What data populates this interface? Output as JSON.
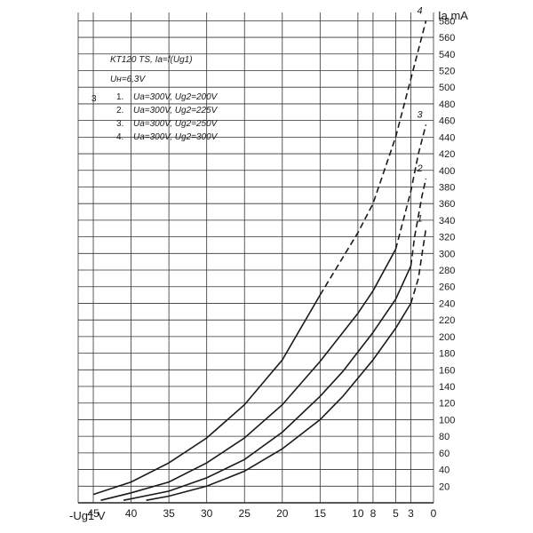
{
  "chart_data": {
    "type": "line",
    "title": "KT120 TS, Ia=f(Ug1)",
    "subtitle": "Uн=6,3V",
    "xlabel": "-Ug1 V",
    "ylabel": "Ia mA",
    "xlim": [
      47,
      0
    ],
    "ylim": [
      0,
      590
    ],
    "x_reversed": true,
    "grid": true,
    "x_ticks": [
      {
        "value": 45,
        "label": "45"
      },
      {
        "value": 40,
        "label": "40"
      },
      {
        "value": 35,
        "label": "35"
      },
      {
        "value": 30,
        "label": "30"
      },
      {
        "value": 25,
        "label": "25"
      },
      {
        "value": 20,
        "label": "20"
      },
      {
        "value": 15,
        "label": "15"
      },
      {
        "value": 10,
        "label": "10"
      },
      {
        "value": 8,
        "label": "8"
      },
      {
        "value": 5,
        "label": "5"
      },
      {
        "value": 3,
        "label": "3"
      },
      {
        "value": 0,
        "label": "0"
      }
    ],
    "y_ticks": [
      20,
      40,
      60,
      80,
      100,
      120,
      140,
      160,
      180,
      200,
      220,
      240,
      260,
      280,
      300,
      320,
      340,
      360,
      380,
      400,
      420,
      440,
      460,
      480,
      500,
      520,
      540,
      560,
      580
    ],
    "legend_marker": "3",
    "legend": [
      {
        "id": "1.",
        "text": "Ua=300V, Ug2=200V"
      },
      {
        "id": "2.",
        "text": "Ua=300V, Ug2=225V"
      },
      {
        "id": "3.",
        "text": "Ua=300V, Ug2=250V"
      },
      {
        "id": "4.",
        "text": "Ua=300V, Ug2=300V"
      }
    ],
    "series": [
      {
        "name": "1",
        "color": "#1a1a1a",
        "solid": [
          [
            38.0,
            3
          ],
          [
            35.0,
            8
          ],
          [
            30.0,
            20
          ],
          [
            25.0,
            38
          ],
          [
            20.0,
            65
          ],
          [
            15.0,
            100
          ],
          [
            12.0,
            128
          ],
          [
            8.0,
            172
          ],
          [
            5.0,
            210
          ],
          [
            3.0,
            240
          ]
        ],
        "dashed": [
          [
            3.0,
            240
          ],
          [
            2.0,
            270
          ],
          [
            1.5,
            300
          ],
          [
            1.0,
            330
          ]
        ]
      },
      {
        "name": "2",
        "color": "#1a1a1a",
        "solid": [
          [
            41.0,
            3
          ],
          [
            35.0,
            14
          ],
          [
            30.0,
            30
          ],
          [
            25.0,
            52
          ],
          [
            20.0,
            85
          ],
          [
            15.0,
            128
          ],
          [
            12.0,
            158
          ],
          [
            8.0,
            205
          ],
          [
            5.0,
            245
          ],
          [
            3.0,
            285
          ]
        ],
        "dashed": [
          [
            3.0,
            285
          ],
          [
            2.5,
            320
          ],
          [
            1.5,
            370
          ],
          [
            1.0,
            390
          ]
        ]
      },
      {
        "name": "3",
        "color": "#1a1a1a",
        "solid": [
          [
            44.0,
            3
          ],
          [
            40.0,
            12
          ],
          [
            35.0,
            25
          ],
          [
            30.0,
            48
          ],
          [
            25.0,
            78
          ],
          [
            20.0,
            118
          ],
          [
            15.0,
            170
          ],
          [
            10.0,
            228
          ],
          [
            8.0,
            255
          ],
          [
            5.0,
            305
          ]
        ],
        "dashed": [
          [
            5.0,
            305
          ],
          [
            4.0,
            340
          ],
          [
            3.0,
            375
          ],
          [
            2.0,
            420
          ],
          [
            1.0,
            455
          ]
        ]
      },
      {
        "name": "4",
        "color": "#1a1a1a",
        "solid": [
          [
            45.0,
            10
          ],
          [
            40.0,
            25
          ],
          [
            35.0,
            48
          ],
          [
            30.0,
            78
          ],
          [
            25.0,
            118
          ],
          [
            20.0,
            172
          ],
          [
            15.0,
            250
          ]
        ],
        "dashed": [
          [
            15.0,
            250
          ],
          [
            10.0,
            325
          ],
          [
            8.0,
            360
          ],
          [
            5.0,
            440
          ],
          [
            3.0,
            510
          ],
          [
            1.0,
            580
          ]
        ]
      }
    ]
  }
}
